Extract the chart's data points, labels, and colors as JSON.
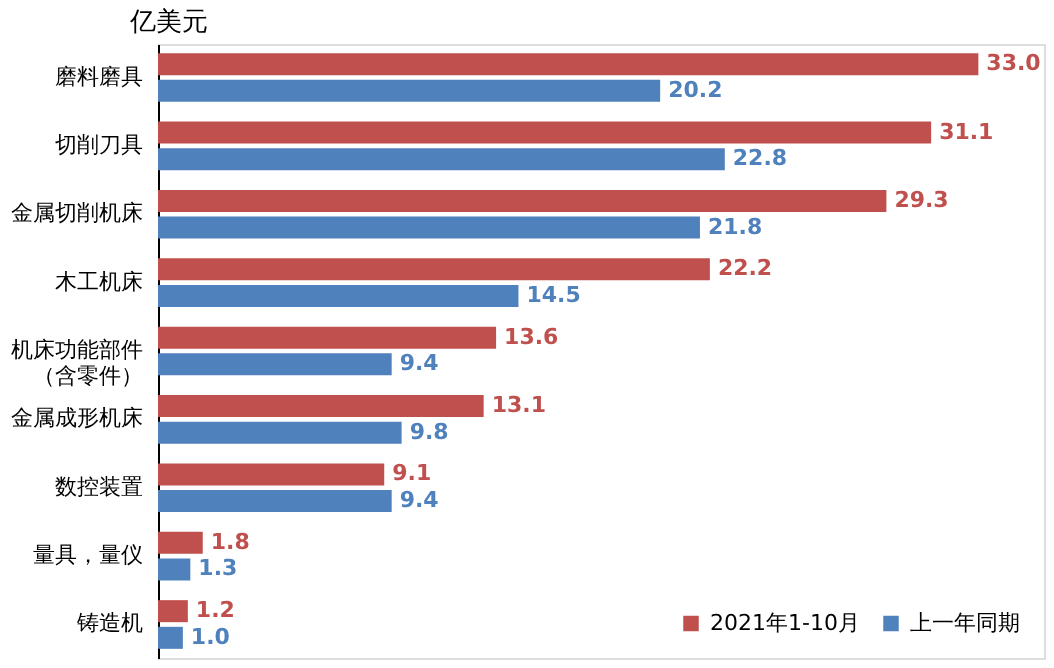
{
  "chart_data": {
    "type": "bar",
    "orientation": "horizontal",
    "ylabel": "亿美元",
    "categories": [
      "磨料磨具",
      "切削刀具",
      "金属切削机床",
      "木工机床",
      "机床功能部件（含零件）",
      "金属成形机床",
      "数控装置",
      "量具，量仪",
      "铸造机"
    ],
    "series": [
      {
        "name": "2021年1-10月",
        "color": "#c0504d",
        "values": [
          33.0,
          31.1,
          29.3,
          22.2,
          13.6,
          13.1,
          9.1,
          1.8,
          1.2
        ],
        "value_labels": [
          "33.0",
          "31.1",
          "29.3",
          "22.2",
          "13.6",
          "13.1",
          "9.1",
          "1.8",
          "1.2"
        ]
      },
      {
        "name": "上一年同期",
        "color": "#4f81bd",
        "values": [
          20.2,
          22.8,
          21.8,
          14.5,
          9.4,
          9.8,
          9.4,
          1.3,
          1.0
        ],
        "value_labels": [
          "20.2",
          "22.8",
          "21.8",
          "14.5",
          "9.4",
          "9.8",
          "9.4",
          "1.3",
          "1.0"
        ]
      }
    ],
    "legend": "bottom right",
    "grid": false
  }
}
